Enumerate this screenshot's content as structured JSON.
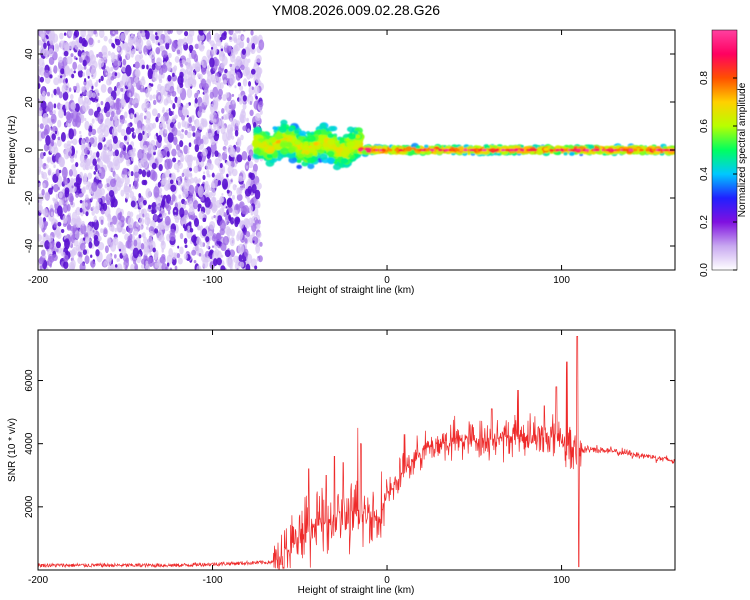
{
  "title": "YM08.2026.009.02.28.G26",
  "colors": {
    "snr_line": "#ee2a2a",
    "scatter": "#6a1fd6",
    "background": "#ffffff"
  },
  "chart_data": [
    {
      "type": "heatmap",
      "name": "spectrogram",
      "xlabel": "Height of straight line (km)",
      "ylabel": "Frequency (Hz)",
      "xlim": [
        -200,
        165
      ],
      "ylim": [
        -50,
        50
      ],
      "xticks": [
        "-200",
        "-100",
        "0",
        "100"
      ],
      "xtick_values": [
        -200,
        -100,
        0,
        100
      ],
      "yticks": [
        "40",
        "20",
        "0",
        "-20",
        "-40"
      ],
      "ytick_values": [
        40,
        20,
        0,
        -20,
        -40
      ],
      "noise_region": {
        "x_from": -200,
        "x_to": -75,
        "density": "high",
        "amplitude": "0.1-0.3"
      },
      "signal_band": [
        {
          "x_from": -75,
          "x_to": -15,
          "center_freq": 3,
          "spread_hz": 9,
          "amplitude": "0.3-0.6"
        },
        {
          "x_from": -15,
          "x_to": 165,
          "center_freq": 0,
          "spread_hz": 2,
          "amplitude": "0.5-1.0"
        }
      ],
      "colorbar": {
        "label": "Normalized spectral amplitude",
        "range": [
          0,
          1
        ],
        "ticks": [
          "0.0",
          "0.2",
          "0.4",
          "0.6",
          "0.8"
        ],
        "tick_values": [
          0.0,
          0.2,
          0.4,
          0.6,
          0.8
        ],
        "colormap": [
          "#ffffff",
          "#c8a8f0",
          "#8010e0",
          "#2020ff",
          "#00c8ff",
          "#00ff60",
          "#b8ff00",
          "#ffd000",
          "#ff5000",
          "#ff0060",
          "#ff40a0"
        ]
      }
    },
    {
      "type": "line",
      "name": "snr",
      "xlabel": "Height of straight line (km)",
      "ylabel": "SNR (10 * v/v)",
      "xlim": [
        -200,
        165
      ],
      "ylim": [
        0,
        7600
      ],
      "xticks": [
        "-200",
        "-100",
        "0",
        "100"
      ],
      "xtick_values": [
        -200,
        -100,
        0,
        100
      ],
      "yticks": [
        "6000",
        "4000",
        "2000"
      ],
      "ytick_values": [
        6000,
        4000,
        2000
      ],
      "envelope": {
        "x": [
          -200,
          -120,
          -65,
          -55,
          -45,
          -30,
          -15,
          -5,
          0,
          10,
          20,
          30,
          40,
          60,
          80,
          100,
          110,
          115,
          130,
          150,
          165
        ],
        "y": [
          150,
          150,
          250,
          700,
          1300,
          1600,
          1800,
          1700,
          2300,
          3200,
          3800,
          4000,
          4100,
          4150,
          4250,
          4200,
          3700,
          3850,
          3750,
          3600,
          3450
        ]
      },
      "spikes": [
        {
          "x": -45,
          "y": 3200
        },
        {
          "x": -35,
          "y": 3000
        },
        {
          "x": -30,
          "y": 3600
        },
        {
          "x": -25,
          "y": 3400
        },
        {
          "x": -17,
          "y": 4500
        },
        {
          "x": -15,
          "y": 4000
        },
        {
          "x": 10,
          "y": 4300
        },
        {
          "x": 60,
          "y": 5100
        },
        {
          "x": 75,
          "y": 5700
        },
        {
          "x": 90,
          "y": 5200
        },
        {
          "x": 97,
          "y": 5800
        },
        {
          "x": 103,
          "y": 6600
        },
        {
          "x": 109,
          "y": 7400
        },
        {
          "x": 110,
          "y": 100
        }
      ]
    }
  ]
}
